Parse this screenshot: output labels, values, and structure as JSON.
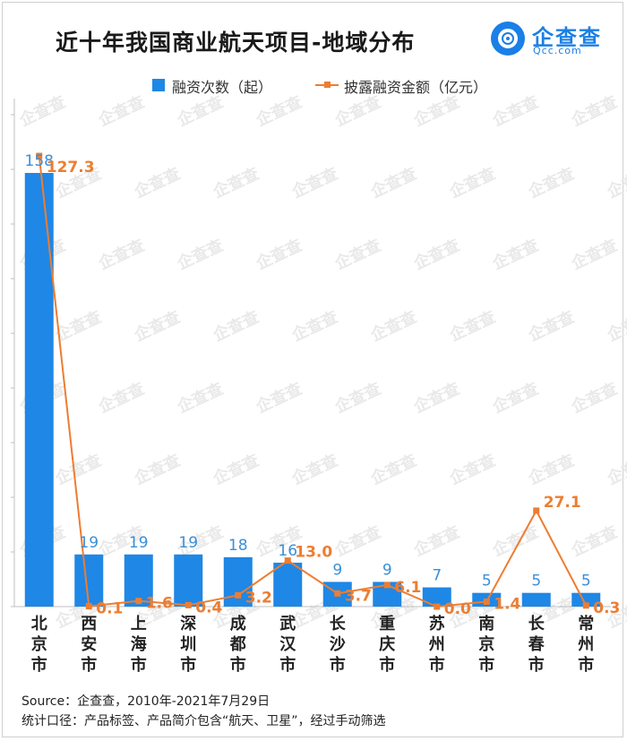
{
  "title": "近十年我国商业航天项目-地域分布",
  "logo": {
    "text": "企查查",
    "sub": "Qcc.com"
  },
  "legend": {
    "bar": "融资次数（起）",
    "line": "披露融资金额（亿元）"
  },
  "footer": {
    "source": "Source：企查查，2010年-2021年7月29日",
    "note": "统计口径：产品标签、产品简介包含“航天、卫星”，经过手动筛选"
  },
  "watermark": "企查查",
  "colors": {
    "bar": "#1f87e5",
    "line": "#ed7d31",
    "bar_label": "#3a8fd8",
    "line_label": "#ed7d31"
  },
  "chart_data": {
    "type": "bar",
    "categories": [
      "北京市",
      "西安市",
      "上海市",
      "深圳市",
      "成都市",
      "武汉市",
      "长沙市",
      "重庆市",
      "苏州市",
      "南京市",
      "长春市",
      "常州市"
    ],
    "series": [
      {
        "name": "融资次数（起）",
        "type": "bar",
        "values": [
          158,
          19,
          19,
          19,
          18,
          16,
          9,
          9,
          7,
          5,
          5,
          5
        ],
        "labels": [
          "158",
          "19",
          "19",
          "19",
          "18",
          "16",
          "9",
          "9",
          "7",
          "5",
          "5",
          "5"
        ]
      },
      {
        "name": "披露融资金额（亿元）",
        "type": "line",
        "values": [
          127.3,
          0.1,
          1.6,
          0.4,
          3.2,
          13.0,
          3.7,
          6.1,
          0.0,
          1.4,
          27.1,
          0.3
        ],
        "labels": [
          "127.3",
          "0.1",
          "1.6",
          "0.4",
          "3.2",
          "13.0",
          "3.7",
          "6.1",
          "0.0",
          "1.4",
          "27.1",
          "0.3"
        ]
      }
    ],
    "title": "近十年我国商业航天项目-地域分布",
    "legend_position": "top",
    "grid": false
  }
}
